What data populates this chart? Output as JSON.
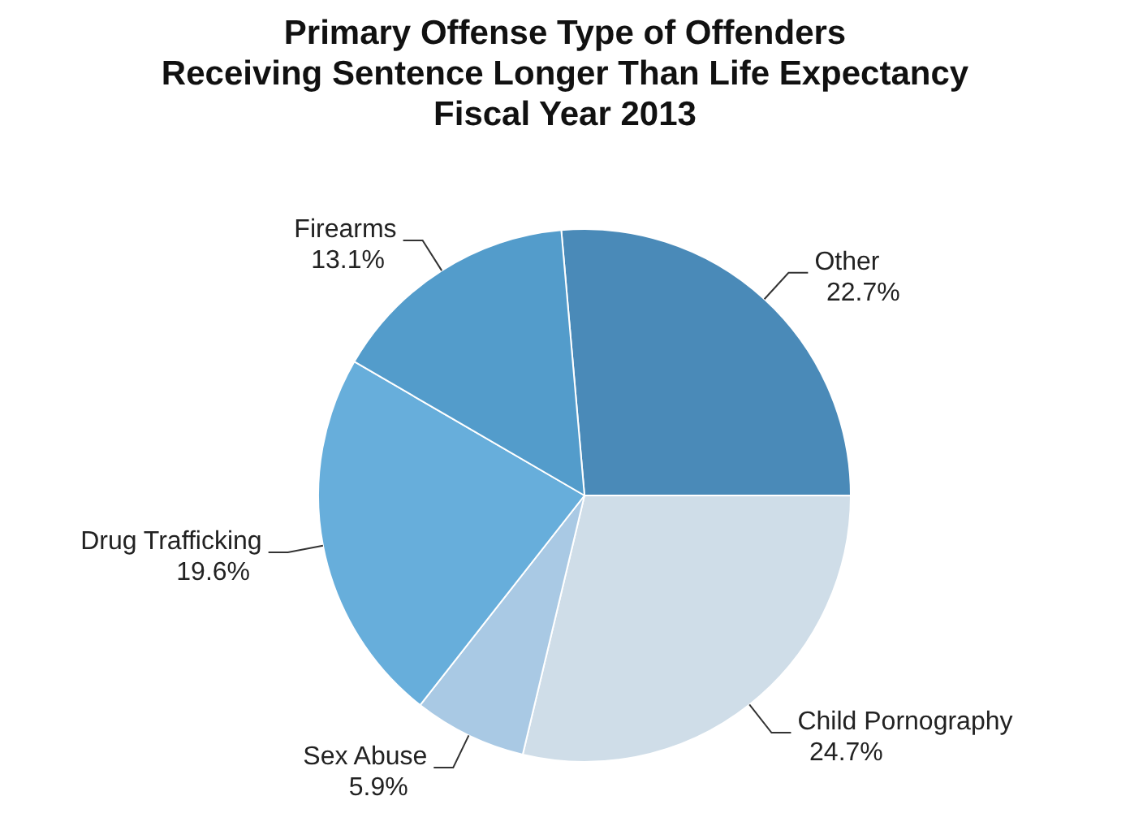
{
  "chart_data": {
    "type": "pie",
    "title": "Primary Offense Type of Offenders\nReceiving Sentence Longer Than Life Expectancy\nFiscal Year 2013",
    "categories": [
      "Other",
      "Child Pornography",
      "Sex Abuse",
      "Drug Trafficking",
      "Firearms"
    ],
    "values": [
      22.7,
      24.7,
      5.9,
      19.6,
      13.1
    ],
    "value_labels": [
      "22.7%",
      "24.7%",
      "5.9%",
      "19.6%",
      "13.1%"
    ],
    "colors": [
      "#4a8ab8",
      "#cfdde8",
      "#a9c9e4",
      "#67aedb",
      "#539ccb"
    ],
    "legend": false
  }
}
